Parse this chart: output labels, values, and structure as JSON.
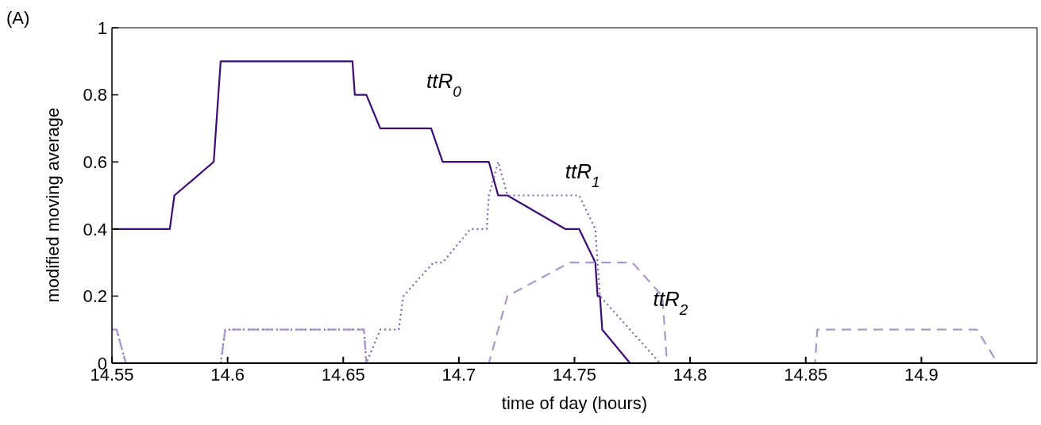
{
  "chart_data": {
    "type": "line",
    "xlabel": "time of day (hours)",
    "ylabel": "modified moving average",
    "annotations": [
      "(A)"
    ],
    "xlim": [
      14.55,
      14.95
    ],
    "xticks": [
      14.55,
      14.6,
      14.65,
      14.7,
      14.75,
      14.8,
      14.85,
      14.9
    ],
    "ylim": [
      0,
      1
    ],
    "yticks": [
      0,
      0.2,
      0.4,
      0.6,
      0.8,
      1
    ],
    "marker": "none",
    "series": [
      {
        "name": "ttR$_{0}$",
        "color": "#3d0a78",
        "line_style": "solid",
        "x": [
          14.55,
          14.575,
          14.577,
          14.594,
          14.595,
          14.597,
          14.654,
          14.655,
          14.66,
          14.666,
          14.688,
          14.693,
          14.713,
          14.717,
          14.721,
          14.746,
          14.752,
          14.759,
          14.76,
          14.761,
          14.762,
          14.774,
          14.95
        ],
        "values": [
          0.4,
          0.4,
          0.5,
          0.6,
          0.7,
          0.9,
          0.9,
          0.8,
          0.8,
          0.7,
          0.7,
          0.6,
          0.6,
          0.5,
          0.5,
          0.4,
          0.4,
          0.3,
          0.2,
          0.2,
          0.1,
          0,
          0
        ]
      },
      {
        "name": "ttR$_{1}$",
        "color": "#7b62b0",
        "line_style": "dotted",
        "x": [
          14.55,
          14.552,
          14.556,
          14.597,
          14.599,
          14.659,
          14.66,
          14.666,
          14.674,
          14.676,
          14.689,
          14.693,
          14.705,
          14.712,
          14.713,
          14.717,
          14.721,
          14.752,
          14.759,
          14.761,
          14.787,
          14.95
        ],
        "values": [
          0.1,
          0.1,
          0,
          0,
          0.1,
          0.1,
          0,
          0.1,
          0.1,
          0.2,
          0.3,
          0.3,
          0.4,
          0.4,
          0.5,
          0.6,
          0.5,
          0.5,
          0.4,
          0.2,
          0,
          0
        ]
      },
      {
        "name": "ttR$_{2}$",
        "color": "#a898cc",
        "line_style": "dashed",
        "x": [
          14.55,
          14.552,
          14.556,
          14.597,
          14.599,
          14.659,
          14.66,
          14.713,
          14.721,
          14.748,
          14.775,
          14.788,
          14.79,
          14.854,
          14.855,
          14.924,
          14.933,
          14.95
        ],
        "values": [
          0.1,
          0.1,
          0,
          0,
          0.1,
          0.1,
          0,
          0,
          0.2,
          0.3,
          0.3,
          0.2,
          0,
          0,
          0.1,
          0.1,
          0,
          0
        ]
      }
    ]
  }
}
